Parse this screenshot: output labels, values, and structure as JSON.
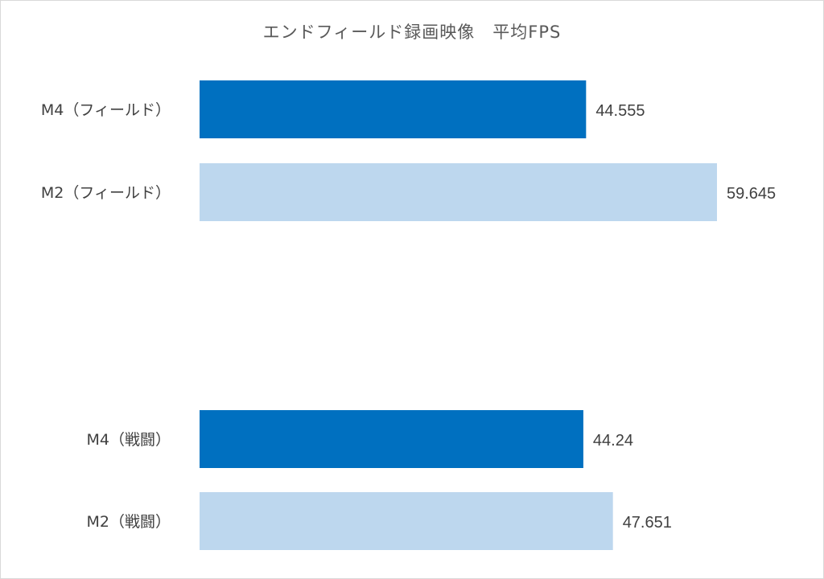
{
  "chart_data": {
    "type": "bar",
    "orientation": "horizontal",
    "title": "エンドフィールド録画映像　平均FPS",
    "categories": [
      "M4（フィールド）",
      "M2（フィールド）",
      "M4（戦闘）",
      "M2（戦闘）"
    ],
    "values": [
      44.555,
      59.645,
      44.24,
      47.651
    ],
    "value_labels": [
      "44.555",
      "59.645",
      "44.24",
      "47.651"
    ],
    "colors": [
      "#0070c0",
      "#bdd7ee",
      "#0070c0",
      "#bdd7ee"
    ],
    "xlim": [
      0,
      60
    ],
    "grid": false,
    "legend": "none",
    "axis_visible": false
  }
}
